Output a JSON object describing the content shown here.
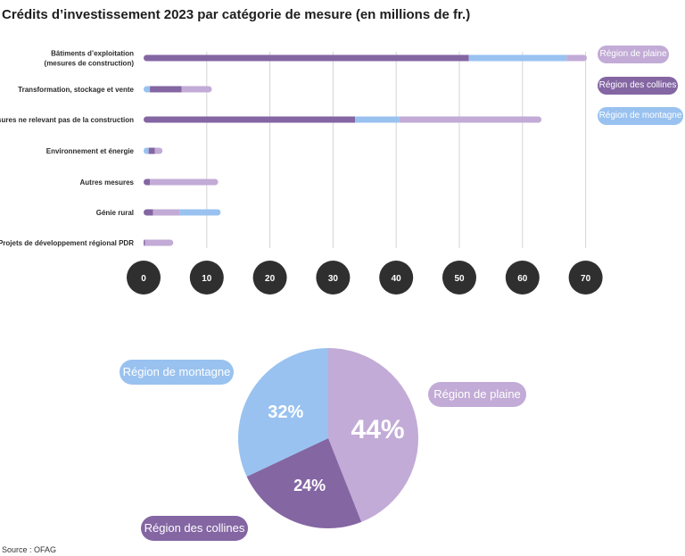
{
  "chart_data": [
    {
      "type": "bar",
      "title": "Crédits d’investissement 2023 par catégorie de mesure (en millions de fr.)",
      "orientation": "horizontal",
      "stacked": true,
      "categories": [
        [
          "Bâtiments d’exploitation",
          "(mesures de construction)"
        ],
        [
          "Transformation, stockage et vente"
        ],
        [
          "Mesures ne relevant pas de la construction"
        ],
        [
          "Environnement et énergie"
        ],
        [
          "Autres mesures"
        ],
        [
          "Génie rural"
        ],
        [
          "Projets de développement régional PDR"
        ]
      ],
      "series": [
        {
          "name": "Région des collines",
          "color": "#8466a3",
          "values": [
            51.5,
            5.0,
            33.5,
            1.0,
            1.0,
            1.5,
            0.2
          ]
        },
        {
          "name": "Région de montagne",
          "color": "#99c2f0",
          "values": [
            15.5,
            1.0,
            7.0,
            0.8,
            0.0,
            6.5,
            0.0
          ]
        },
        {
          "name": "Région de plaine",
          "color": "#c2abd6",
          "values": [
            3.2,
            4.8,
            22.5,
            1.2,
            10.8,
            4.2,
            4.5
          ]
        }
      ],
      "segment_order": [
        [
          0,
          1,
          2
        ],
        [
          1,
          0,
          2
        ],
        [
          0,
          1,
          2
        ],
        [
          1,
          0,
          2
        ],
        [
          0,
          2,
          1
        ],
        [
          0,
          2,
          1
        ],
        [
          0,
          2,
          1
        ]
      ],
      "x_ticks": [
        "0",
        "10",
        "20",
        "30",
        "40",
        "50",
        "60",
        "70"
      ],
      "xlim": [
        0,
        70
      ],
      "grid": true,
      "legend_position": "right",
      "legend": [
        {
          "name": "Région de plaine",
          "color": "#c2abd6"
        },
        {
          "name": "Région des collines",
          "color": "#8466a3"
        },
        {
          "name": "Région de montagne",
          "color": "#99c2f0"
        }
      ]
    },
    {
      "type": "pie",
      "slices": [
        {
          "name": "Région de plaine",
          "value": 44,
          "label": "44%",
          "color": "#c2abd6"
        },
        {
          "name": "Région des collines",
          "value": 24,
          "label": "24%",
          "color": "#8466a3"
        },
        {
          "name": "Région de montagne",
          "value": 32,
          "label": "32%",
          "color": "#99c2f0"
        }
      ],
      "legend": [
        {
          "name": "Région de montagne",
          "color": "#99c2f0"
        },
        {
          "name": "Région de plaine",
          "color": "#c2abd6"
        },
        {
          "name": "Région des collines",
          "color": "#8466a3"
        }
      ]
    }
  ],
  "source": "Source : OFAG"
}
